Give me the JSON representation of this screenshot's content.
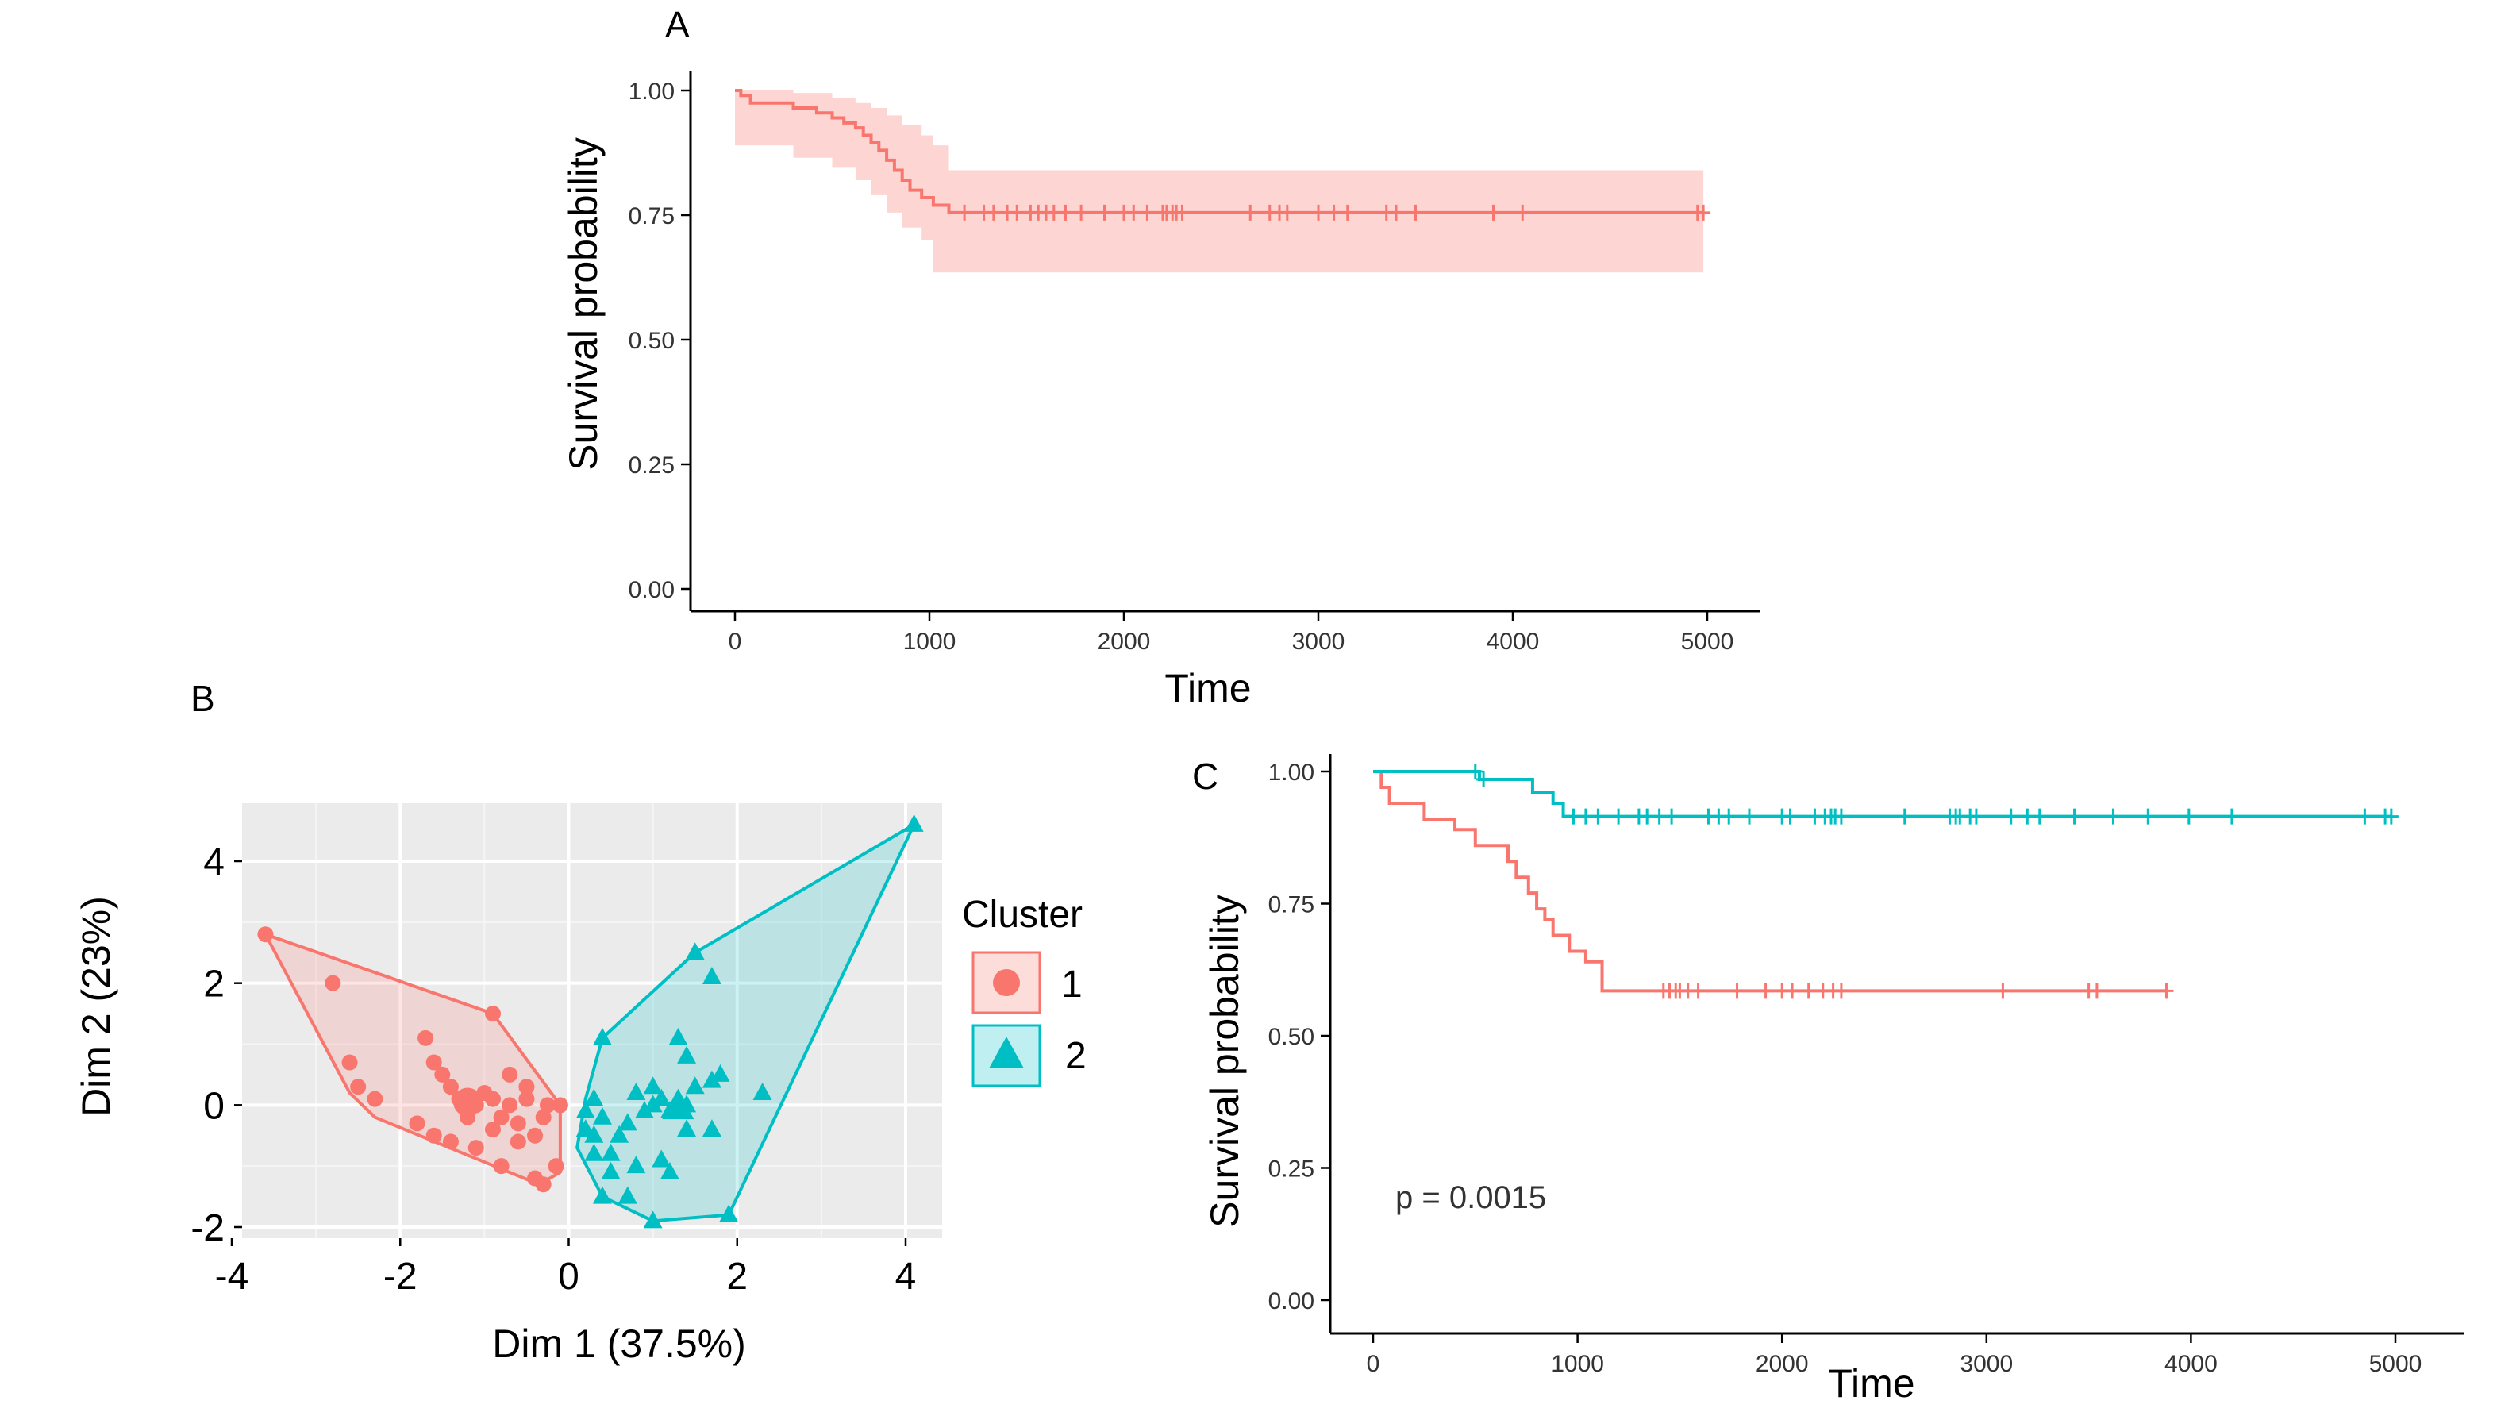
{
  "panel_letters": {
    "a": "A",
    "b": "B",
    "c": "C"
  },
  "colors": {
    "cluster1": "#F8766D",
    "cluster2": "#00BFC4",
    "grid_bg": "#EBEBEB"
  },
  "chart_data": [
    {
      "type": "line",
      "panel": "A",
      "title": "",
      "xlabel": "Time",
      "ylabel": "Survival probability",
      "xlim": [
        0,
        5000
      ],
      "ylim": [
        0,
        1
      ],
      "xticks": [
        0,
        1000,
        2000,
        3000,
        4000,
        5000
      ],
      "xtick_labels": [
        "0",
        "1000",
        "2000",
        "3000",
        "4000",
        "5000"
      ],
      "yticks": [
        0,
        0.25,
        0.5,
        0.75,
        1
      ],
      "ytick_labels": [
        "0.00",
        "0.25",
        "0.50",
        "0.75",
        "1.00"
      ],
      "series": [
        {
          "color": "#F8766D",
          "steps": [
            [
              0,
              1.0
            ],
            [
              30,
              0.99
            ],
            [
              80,
              0.975
            ],
            [
              300,
              0.965
            ],
            [
              420,
              0.955
            ],
            [
              500,
              0.945
            ],
            [
              560,
              0.935
            ],
            [
              620,
              0.925
            ],
            [
              660,
              0.91
            ],
            [
              700,
              0.895
            ],
            [
              740,
              0.88
            ],
            [
              780,
              0.86
            ],
            [
              820,
              0.84
            ],
            [
              860,
              0.82
            ],
            [
              900,
              0.8
            ],
            [
              960,
              0.785
            ],
            [
              1020,
              0.77
            ],
            [
              1100,
              0.755
            ],
            [
              4980,
              0.755
            ]
          ],
          "ci_steps": [
            [
              0,
              1.0,
              0.91
            ],
            [
              300,
              0.995,
              0.89
            ],
            [
              500,
              0.985,
              0.865
            ],
            [
              620,
              0.975,
              0.845
            ],
            [
              700,
              0.965,
              0.82
            ],
            [
              780,
              0.95,
              0.79
            ],
            [
              860,
              0.93,
              0.755
            ],
            [
              960,
              0.91,
              0.725
            ],
            [
              1020,
              0.89,
              0.7
            ],
            [
              1100,
              0.84,
              0.635
            ],
            [
              4980,
              0.84,
              0.635
            ]
          ],
          "censor_x": [
            1180,
            1280,
            1330,
            1400,
            1450,
            1520,
            1560,
            1600,
            1640,
            1700,
            1780,
            1900,
            2000,
            2050,
            2120,
            2200,
            2220,
            2250,
            2270,
            2300,
            2650,
            2750,
            2800,
            2840,
            3000,
            3080,
            3150,
            3350,
            3400,
            3500,
            3900,
            4050,
            4950,
            4980
          ]
        }
      ]
    },
    {
      "type": "scatter",
      "panel": "B",
      "title": "",
      "xlabel": "Dim 1 (37.5%)",
      "ylabel": "Dim 2 (23%)",
      "xlim": [
        -4.3,
        4.4
      ],
      "ylim": [
        -2.2,
        4.9
      ],
      "xticks": [
        -4,
        -2,
        0,
        2,
        4
      ],
      "xtick_labels": [
        "-4",
        "-2",
        "0",
        "2",
        "4"
      ],
      "yticks": [
        -2,
        0,
        2,
        4
      ],
      "ytick_labels": [
        "-2",
        "0",
        "2",
        "4"
      ],
      "legend": {
        "title": "Cluster",
        "entries": [
          "1",
          "2"
        ],
        "placement": "right"
      },
      "series": [
        {
          "name": "1",
          "color": "#F8766D",
          "shape": "circle",
          "hull": [
            [
              -3.6,
              2.8
            ],
            [
              -0.9,
              1.5
            ],
            [
              -0.1,
              0.0
            ],
            [
              -0.1,
              -1.1
            ],
            [
              -0.35,
              -1.3
            ],
            [
              -2.3,
              -0.2
            ],
            [
              -2.6,
              0.2
            ]
          ],
          "points": [
            [
              -3.6,
              2.8
            ],
            [
              -2.8,
              2.0
            ],
            [
              -2.6,
              0.7
            ],
            [
              -2.5,
              0.3
            ],
            [
              -2.3,
              0.1
            ],
            [
              -1.7,
              1.1
            ],
            [
              -1.6,
              0.7
            ],
            [
              -1.5,
              0.5
            ],
            [
              -1.4,
              0.3
            ],
            [
              -1.3,
              0.1
            ],
            [
              -1.2,
              -0.2
            ],
            [
              -1.1,
              0.0
            ],
            [
              -1.0,
              0.2
            ],
            [
              -0.9,
              0.1
            ],
            [
              -0.8,
              -0.2
            ],
            [
              -0.7,
              0.0
            ],
            [
              -0.6,
              -0.3
            ],
            [
              -0.5,
              0.1
            ],
            [
              -0.4,
              -0.5
            ],
            [
              -0.3,
              -0.2
            ],
            [
              -0.25,
              0.0
            ],
            [
              -0.9,
              1.5
            ],
            [
              -0.7,
              0.5
            ],
            [
              -0.5,
              0.3
            ],
            [
              -0.4,
              -1.2
            ],
            [
              -0.3,
              -1.3
            ],
            [
              -0.15,
              -1.0
            ],
            [
              -0.1,
              0.0
            ],
            [
              -1.6,
              -0.5
            ],
            [
              -1.8,
              -0.3
            ],
            [
              -1.4,
              -0.6
            ],
            [
              -1.1,
              -0.7
            ],
            [
              -0.9,
              -0.4
            ],
            [
              -0.6,
              -0.6
            ],
            [
              -0.8,
              -1.0
            ],
            [
              -1.2,
              0.05
            ]
          ]
        },
        {
          "name": "2",
          "color": "#00BFC4",
          "shape": "triangle",
          "hull": [
            [
              4.1,
              4.6
            ],
            [
              1.9,
              -1.8
            ],
            [
              1.0,
              -1.9
            ],
            [
              0.4,
              -1.5
            ],
            [
              0.1,
              -0.7
            ],
            [
              0.2,
              0.1
            ],
            [
              0.4,
              1.1
            ],
            [
              1.5,
              2.5
            ]
          ],
          "points": [
            [
              4.1,
              4.6
            ],
            [
              1.5,
              2.5
            ],
            [
              1.7,
              2.1
            ],
            [
              1.3,
              1.1
            ],
            [
              0.4,
              1.1
            ],
            [
              1.4,
              0.8
            ],
            [
              2.3,
              0.2
            ],
            [
              1.8,
              0.5
            ],
            [
              1.7,
              0.4
            ],
            [
              1.5,
              0.3
            ],
            [
              1.4,
              0.0
            ],
            [
              1.3,
              0.1
            ],
            [
              1.2,
              -0.1
            ],
            [
              1.1,
              0.1
            ],
            [
              1.0,
              0.3
            ],
            [
              1.0,
              0.0
            ],
            [
              0.9,
              -0.1
            ],
            [
              0.8,
              0.2
            ],
            [
              0.7,
              -0.3
            ],
            [
              0.6,
              -0.5
            ],
            [
              0.5,
              -0.8
            ],
            [
              0.4,
              -0.2
            ],
            [
              0.3,
              0.1
            ],
            [
              0.2,
              -0.4
            ],
            [
              0.3,
              -0.8
            ],
            [
              0.5,
              -1.1
            ],
            [
              0.8,
              -1.0
            ],
            [
              1.1,
              -0.9
            ],
            [
              1.2,
              -1.1
            ],
            [
              1.4,
              -0.4
            ],
            [
              1.7,
              -0.4
            ],
            [
              0.4,
              -1.5
            ],
            [
              0.7,
              -1.5
            ],
            [
              1.0,
              -1.9
            ],
            [
              1.9,
              -1.8
            ],
            [
              0.2,
              -0.1
            ],
            [
              0.3,
              -0.5
            ]
          ]
        }
      ]
    },
    {
      "type": "line",
      "panel": "C",
      "title": "",
      "xlabel": "Time",
      "ylabel": "Survival probability",
      "annotation": "p = 0.0015",
      "xlim": [
        0,
        5000
      ],
      "ylim": [
        0,
        1
      ],
      "xticks": [
        0,
        1000,
        2000,
        3000,
        4000,
        5000
      ],
      "xtick_labels": [
        "0",
        "1000",
        "2000",
        "3000",
        "4000",
        "5000"
      ],
      "yticks": [
        0,
        0.25,
        0.5,
        0.75,
        1
      ],
      "ytick_labels": [
        "0.00",
        "0.25",
        "0.50",
        "0.75",
        "1.00"
      ],
      "series": [
        {
          "color": "#F8766D",
          "steps": [
            [
              0,
              1.0
            ],
            [
              40,
              0.97
            ],
            [
              80,
              0.94
            ],
            [
              250,
              0.91
            ],
            [
              400,
              0.89
            ],
            [
              500,
              0.86
            ],
            [
              660,
              0.83
            ],
            [
              700,
              0.8
            ],
            [
              760,
              0.77
            ],
            [
              800,
              0.74
            ],
            [
              840,
              0.72
            ],
            [
              880,
              0.69
            ],
            [
              960,
              0.66
            ],
            [
              1040,
              0.64
            ],
            [
              1120,
              0.585
            ],
            [
              3880,
              0.585
            ]
          ],
          "censor_x": [
            1420,
            1450,
            1480,
            1500,
            1540,
            1590,
            1780,
            1920,
            2000,
            2050,
            2130,
            2200,
            2250,
            2290,
            3080,
            3500,
            3540,
            3880
          ]
        },
        {
          "color": "#00BFC4",
          "steps": [
            [
              0,
              1.0
            ],
            [
              500,
              1.0
            ],
            [
              520,
              0.985
            ],
            [
              780,
              0.96
            ],
            [
              880,
              0.94
            ],
            [
              930,
              0.915
            ],
            [
              4980,
              0.915
            ]
          ],
          "censor_x": [
            500,
            540,
            980,
            1040,
            1100,
            1200,
            1300,
            1340,
            1400,
            1460,
            1640,
            1690,
            1740,
            1840,
            2000,
            2040,
            2160,
            2210,
            2240,
            2260,
            2290,
            2600,
            2820,
            2850,
            2870,
            2920,
            2950,
            3120,
            3200,
            3260,
            3430,
            3620,
            3790,
            3990,
            4200,
            4850,
            4950,
            4980
          ]
        }
      ]
    }
  ]
}
